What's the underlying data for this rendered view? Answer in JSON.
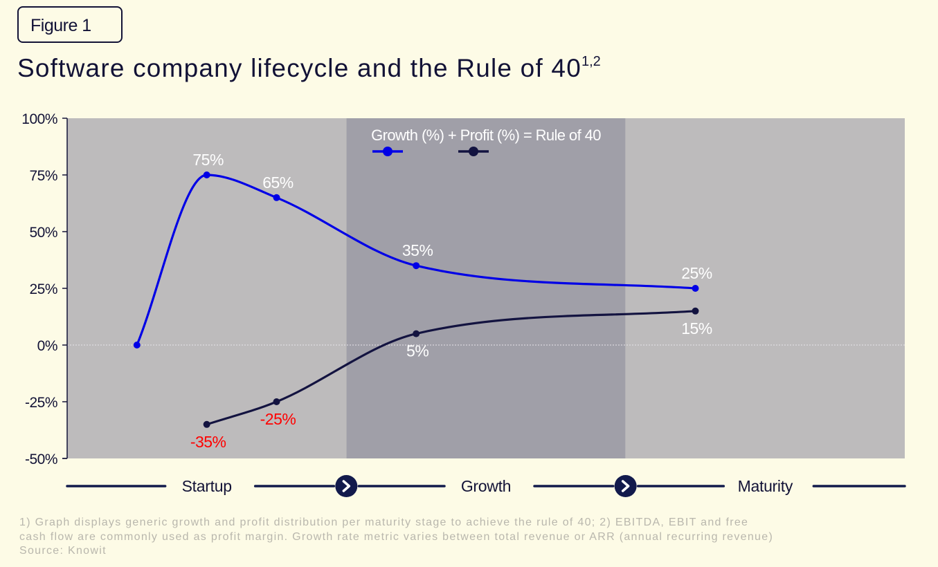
{
  "figure_label": "Figure 1",
  "title": "Software company lifecycle and the Rule of 40",
  "title_superscript": "1,2",
  "chart_data": {
    "type": "line",
    "stages": [
      "Startup",
      "Growth",
      "Maturity"
    ],
    "legend_text": "Growth (%) + Profit (%) = Rule of 40",
    "legend_placement": "top-center",
    "ylim": [
      -50,
      100
    ],
    "yticks": [
      100,
      75,
      50,
      25,
      0,
      -25,
      -50
    ],
    "ytick_labels": [
      "100%",
      "75%",
      "50%",
      "25%",
      "0%",
      "-25%",
      "-50%"
    ],
    "xlabel": "",
    "ylabel": "",
    "grid": false,
    "zero_line": "dotted",
    "series": [
      {
        "key": "growth",
        "color": "#0000e6",
        "points": [
          [
            0.5,
            0
          ],
          [
            1.0,
            75
          ],
          [
            1.5,
            65
          ],
          [
            2.5,
            35
          ],
          [
            4.5,
            25
          ]
        ],
        "labels": [
          "",
          "75%",
          "65%",
          "35%",
          "25%"
        ]
      },
      {
        "key": "profit",
        "color": "#131340",
        "points": [
          [
            1.0,
            -35
          ],
          [
            1.5,
            -25
          ],
          [
            2.5,
            5
          ],
          [
            4.5,
            15
          ]
        ],
        "labels": [
          "-35%",
          "-25%",
          "5%",
          "15%"
        ]
      }
    ],
    "colors": {
      "band_light": "#bdbbbc",
      "band_dark": "#a09fa8",
      "point_label": "#ffffff",
      "negative_label": "#ff0000",
      "axis": "#121236",
      "stage_arrow": "#121a4c"
    }
  },
  "footnotes": [
    "1) Graph displays generic growth and profit distribution per maturity stage to achieve the rule of 40; 2) EBITDA, EBIT and free",
    "cash flow are commonly used as profit margin. Growth rate metric varies between total revenue or ARR (annual recurring revenue)",
    "Source: Knowit"
  ]
}
